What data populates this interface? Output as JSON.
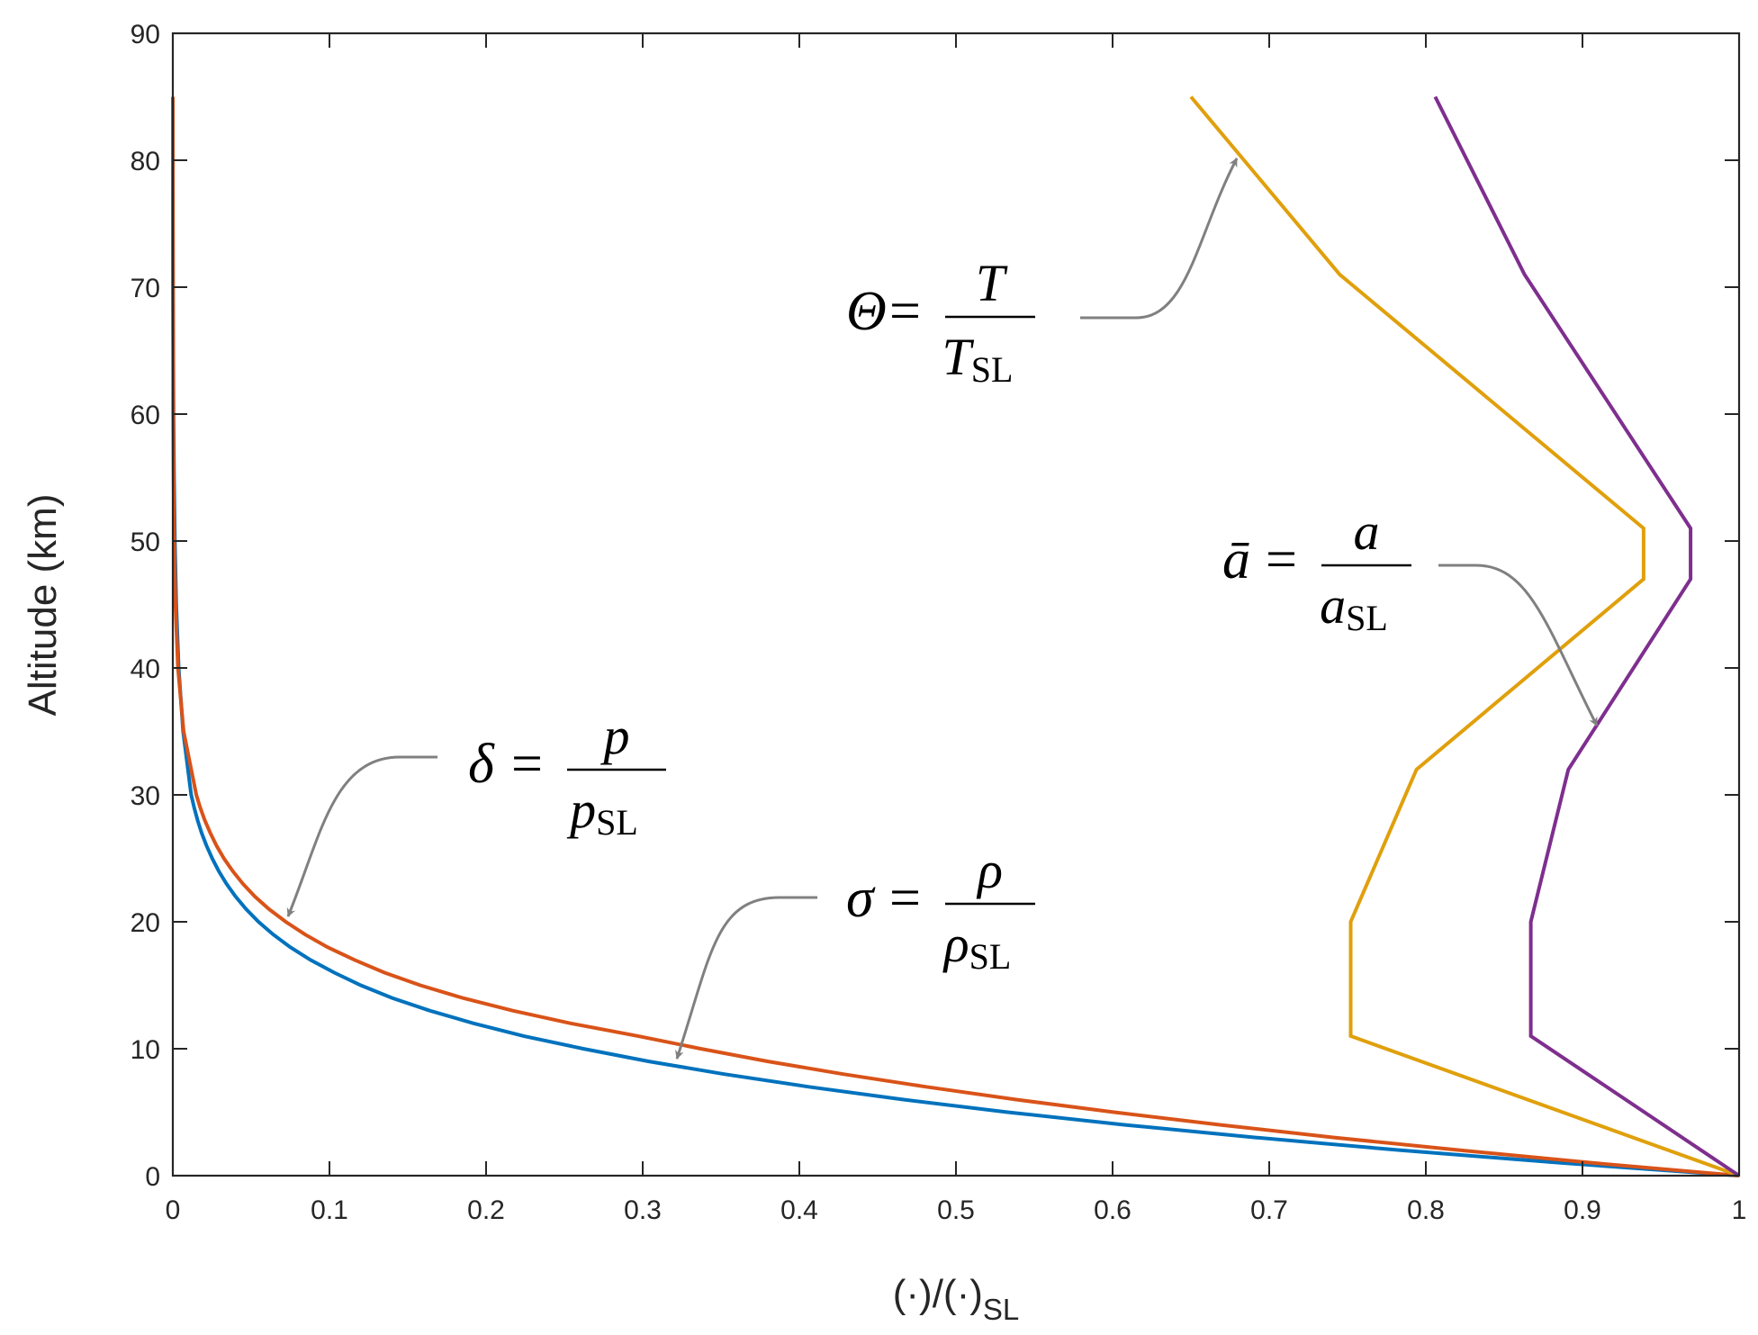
{
  "chart_data": {
    "type": "line",
    "xlabel_main": "(·)/(·)",
    "xlabel_sub": "SL",
    "ylabel": "Altitude (km)",
    "xlim": [
      0,
      1
    ],
    "ylim": [
      0,
      90
    ],
    "xticks": [
      0,
      0.1,
      0.2,
      0.3,
      0.4,
      0.5,
      0.6,
      0.7,
      0.8,
      0.9,
      1
    ],
    "xtick_labels": [
      "0",
      "0.1",
      "0.2",
      "0.3",
      "0.4",
      "0.5",
      "0.6",
      "0.7",
      "0.8",
      "0.9",
      "1"
    ],
    "yticks": [
      0,
      10,
      20,
      30,
      40,
      50,
      60,
      70,
      80,
      90
    ],
    "ytick_labels": [
      "0",
      "10",
      "20",
      "30",
      "40",
      "50",
      "60",
      "70",
      "80",
      "90"
    ],
    "grid": false,
    "series": [
      {
        "key": "delta",
        "color": "#0072BD",
        "x": [
          1.0,
          0.887,
          0.784,
          0.692,
          0.608,
          0.533,
          0.466,
          0.406,
          0.352,
          0.304,
          0.262,
          0.224,
          0.192,
          0.164,
          0.14,
          0.12,
          0.103,
          0.0878,
          0.075,
          0.0641,
          0.0547,
          0.0468,
          0.04,
          0.0342,
          0.0293,
          0.0251,
          0.0215,
          0.0184,
          0.0158,
          0.0136,
          0.0117,
          0.00658,
          0.00376,
          0.00219,
          0.00131,
          0.000788,
          0.000464,
          0.000266,
          0.000148,
          7.97e-05,
          4.13e-05
        ],
        "y": [
          0,
          1,
          2,
          3,
          4,
          5,
          6,
          7,
          8,
          9,
          10,
          11,
          12,
          13,
          14,
          15,
          16,
          17,
          18,
          19,
          20,
          21,
          22,
          23,
          24,
          25,
          26,
          27,
          28,
          29,
          30,
          35,
          40,
          45,
          50,
          55,
          60,
          65,
          70,
          75,
          80
        ]
      },
      {
        "key": "sigma",
        "color": "#D95319",
        "x": [
          1.0,
          0.907,
          0.822,
          0.742,
          0.669,
          0.601,
          0.538,
          0.481,
          0.428,
          0.38,
          0.337,
          0.297,
          0.254,
          0.217,
          0.185,
          0.158,
          0.135,
          0.116,
          0.0988,
          0.0844,
          0.0721,
          0.0614,
          0.0523,
          0.0447,
          0.0382,
          0.0326,
          0.0279,
          0.0239,
          0.0204,
          0.0175,
          0.015,
          0.00687,
          0.00327,
          0.00164,
          0.000843,
          0.00045,
          0.000251,
          0.000144,
          8.37e-05,
          4.77e-05,
          2.62e-05
        ],
        "y": [
          0,
          1,
          2,
          3,
          4,
          5,
          6,
          7,
          8,
          9,
          10,
          11,
          12,
          13,
          14,
          15,
          16,
          17,
          18,
          19,
          20,
          21,
          22,
          23,
          24,
          25,
          26,
          27,
          28,
          29,
          30,
          35,
          40,
          45,
          50,
          55,
          60,
          65,
          70,
          75,
          80
        ]
      },
      {
        "key": "theta",
        "color": "#E0A00C",
        "x": [
          1.0,
          0.752,
          0.752,
          0.794,
          0.939,
          0.939,
          0.745,
          0.65
        ],
        "y": [
          0,
          11,
          20,
          32,
          47,
          51,
          71,
          85
        ]
      },
      {
        "key": "abar",
        "color": "#7E2F8E",
        "x": [
          1.0,
          0.867,
          0.867,
          0.891,
          0.969,
          0.969,
          0.863,
          0.806
        ],
        "y": [
          0,
          11,
          20,
          32,
          47,
          51,
          71,
          85
        ]
      }
    ],
    "annotations": [
      {
        "key": "delta",
        "lhs": "δ",
        "num": "p",
        "den": "p",
        "den_sub": "SL",
        "arrow_to": [
          0.074,
          20
        ]
      },
      {
        "key": "sigma",
        "lhs": "σ",
        "num": "ρ",
        "den": "ρ",
        "den_sub": "SL",
        "arrow_to": [
          0.322,
          9
        ]
      },
      {
        "key": "theta",
        "lhs": "Θ",
        "num": "T",
        "den": "T",
        "den_sub": "SL",
        "arrow_to": [
          0.681,
          80
        ]
      },
      {
        "key": "abar",
        "lhs": "ā",
        "num": "a",
        "den": "a",
        "den_sub": "SL",
        "arrow_to": [
          0.91,
          35.5
        ]
      }
    ]
  }
}
